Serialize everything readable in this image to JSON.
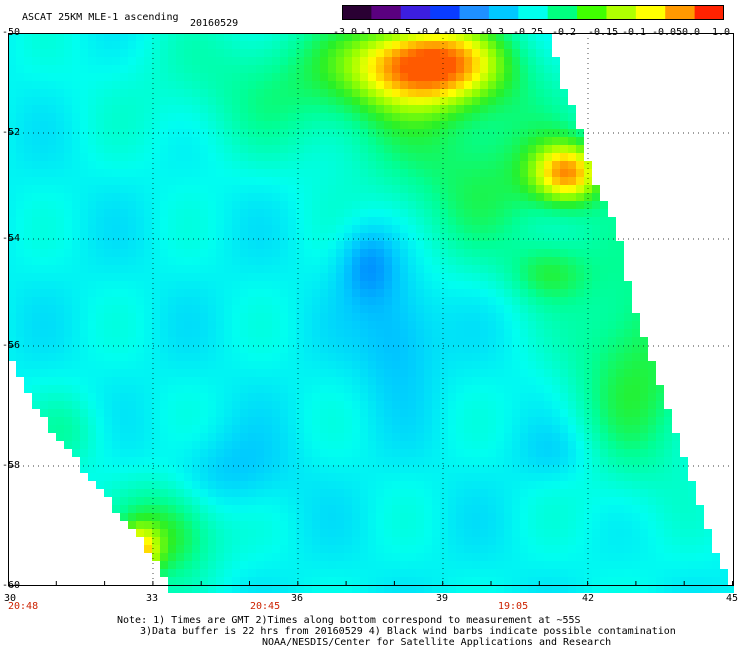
{
  "header": {
    "title": "ASCAT 25KM MLE-1 ascending",
    "date": "20160529"
  },
  "colorbar": {
    "tick_labels": [
      "-3.0",
      "-1.0",
      "-0.5",
      "-0.4",
      "-0.35",
      "-0.3",
      "-0.25",
      "-0.2",
      "-0.15",
      "-0.1",
      "-0.05",
      "0.0",
      "1.0"
    ],
    "colors": [
      "#2a0033",
      "#5a007f",
      "#3c1ee0",
      "#0a3cff",
      "#1e90ff",
      "#00c8ff",
      "#00ffee",
      "#00ff80",
      "#40ff00",
      "#b0ff00",
      "#ffff00",
      "#ff9900",
      "#ff2200"
    ]
  },
  "map": {
    "lat_labels": [
      "-50",
      "-52",
      "-54",
      "-56",
      "-58",
      "-60"
    ],
    "lon_labels": [
      "30",
      "33",
      "36",
      "39",
      "42",
      "45"
    ],
    "time_labels": [
      "20:48",
      "20:45",
      "19:05"
    ]
  },
  "notes": {
    "line1": "Note: 1) Times are GMT 2)Times along bottom correspond to measurement at ~55S",
    "line2": "3)Data buffer is 22 hrs from 20160529 4) Black wind barbs indicate possible contamination",
    "line3": "NOAA/NESDIS/Center for Satellite Applications and Research"
  },
  "colors": {
    "field_base": "#00ffee",
    "frame": "#000000",
    "time_label": "#cc2200"
  }
}
